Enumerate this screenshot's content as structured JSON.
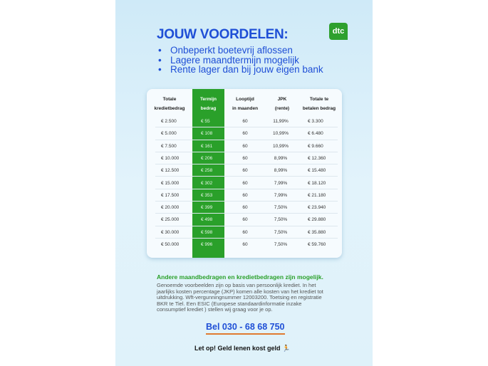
{
  "title": "JOUW VOORDELEN:",
  "logo": "dtc",
  "benefits": [
    "Onbeperkt boetevrij aflossen",
    "Lagere maandtermijn mogelijk",
    "Rente lager dan bij jouw eigen bank"
  ],
  "table": {
    "headers": [
      [
        "Totale",
        "kredietbedrag"
      ],
      [
        "Termijn",
        "bedrag"
      ],
      [
        "Looptijd",
        "in maanden"
      ],
      [
        "JPK",
        "(rente)"
      ],
      [
        "Totale te",
        "betalen bedrag"
      ]
    ],
    "rows": [
      [
        "€ 2.500",
        "€ 55",
        "60",
        "11,99%",
        "€ 3.300"
      ],
      [
        "€ 5.000",
        "€ 108",
        "60",
        "10,99%",
        "€ 6.480"
      ],
      [
        "€ 7.500",
        "€ 161",
        "60",
        "10,99%",
        "€ 9.660"
      ],
      [
        "€ 10.000",
        "€ 206",
        "60",
        "8,99%",
        "€ 12.360"
      ],
      [
        "€ 12.500",
        "€ 258",
        "60",
        "8,99%",
        "€ 15.480"
      ],
      [
        "€ 15.000",
        "€ 302",
        "60",
        "7,99%",
        "€ 18.120"
      ],
      [
        "€ 17.500",
        "€ 353",
        "60",
        "7,99%",
        "€ 21.180"
      ],
      [
        "€ 20.000",
        "€ 399",
        "60",
        "7,50%",
        "€ 23.940"
      ],
      [
        "€ 25.000",
        "€ 498",
        "60",
        "7,50%",
        "€ 29.880"
      ],
      [
        "€ 30.000",
        "€ 598",
        "60",
        "7,50%",
        "€ 35.880"
      ],
      [
        "€ 50.000",
        "€ 996",
        "60",
        "7,50%",
        "€ 59.760"
      ]
    ]
  },
  "more": "Andere maandbedragen en kredietbedragen zijn mogelijk.",
  "body": "Genoemde voorbeelden zijn op basis van persoonlijk krediet. In het jaarlijks kosten percentage (JKP) komen alle kosten van het krediet tot uitdrukking. Wft-vergunningnummer 12003200. Toetsing en registratie BKR te Tiel. Een ESIC (Europese standaardinformatie inzake consumptief krediet ) stellen wij graag voor je op.",
  "phone": "Bel 030 - 68 68 750",
  "warning": "Let op! Geld lenen kost geld",
  "colors": {
    "blue": "#1f4fd6",
    "green": "#2aa02a",
    "orange": "#e07a30"
  }
}
